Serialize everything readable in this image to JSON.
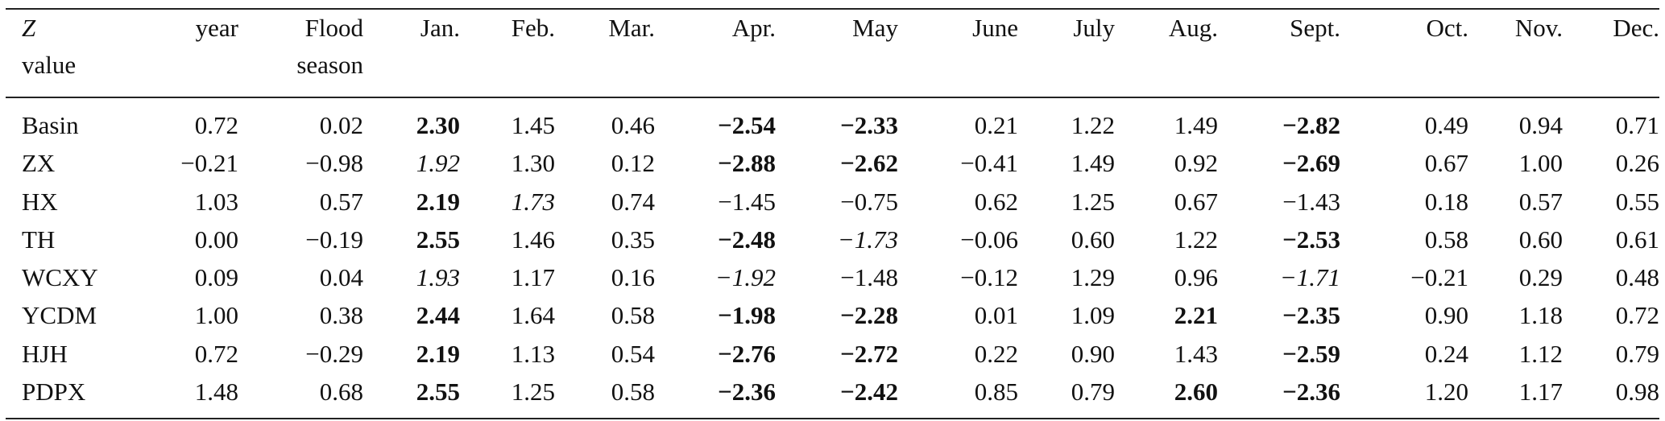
{
  "table": {
    "header": [
      [
        "Z",
        "value"
      ],
      "year",
      [
        "Flood",
        "season"
      ],
      "Jan.",
      "Feb.",
      "Mar.",
      "Apr.",
      "May",
      "June",
      "July",
      "Aug.",
      "Sept.",
      "Oct.",
      "Nov.",
      "Dec."
    ],
    "rows": [
      {
        "label": "Basin",
        "values": [
          "0.72",
          "0.02",
          "2.30",
          "1.45",
          "0.46",
          "−2.54",
          "−2.33",
          "0.21",
          "1.22",
          "1.49",
          "−2.82",
          "0.49",
          "0.94",
          "0.71"
        ]
      },
      {
        "label": "ZX",
        "values": [
          "−0.21",
          "−0.98",
          "1.92",
          "1.30",
          "0.12",
          "−2.88",
          "−2.62",
          "−0.41",
          "1.49",
          "0.92",
          "−2.69",
          "0.67",
          "1.00",
          "0.26"
        ]
      },
      {
        "label": "HX",
        "values": [
          "1.03",
          "0.57",
          "2.19",
          "1.73",
          "0.74",
          "−1.45",
          "−0.75",
          "0.62",
          "1.25",
          "0.67",
          "−1.43",
          "0.18",
          "0.57",
          "0.55"
        ]
      },
      {
        "label": "TH",
        "values": [
          "0.00",
          "−0.19",
          "2.55",
          "1.46",
          "0.35",
          "−2.48",
          "−1.73",
          "−0.06",
          "0.60",
          "1.22",
          "−2.53",
          "0.58",
          "0.60",
          "0.61"
        ]
      },
      {
        "label": "WCXY",
        "values": [
          "0.09",
          "0.04",
          "1.93",
          "1.17",
          "0.16",
          "−1.92",
          "−1.48",
          "−0.12",
          "1.29",
          "0.96",
          "−1.71",
          "−0.21",
          "0.29",
          "0.48"
        ]
      },
      {
        "label": "YCDM",
        "values": [
          "1.00",
          "0.38",
          "2.44",
          "1.64",
          "0.58",
          "−1.98",
          "−2.28",
          "0.01",
          "1.09",
          "2.21",
          "−2.35",
          "0.90",
          "1.18",
          "0.72"
        ]
      },
      {
        "label": "HJH",
        "values": [
          "0.72",
          "−0.29",
          "2.19",
          "1.13",
          "0.54",
          "−2.76",
          "−2.72",
          "0.22",
          "0.90",
          "1.43",
          "−2.59",
          "0.24",
          "1.12",
          "0.79"
        ]
      },
      {
        "label": "PDPX",
        "values": [
          "1.48",
          "0.68",
          "2.55",
          "1.25",
          "0.58",
          "−2.36",
          "−2.42",
          "0.85",
          "0.79",
          "2.60",
          "−2.36",
          "1.20",
          "1.17",
          "0.98"
        ]
      }
    ]
  }
}
